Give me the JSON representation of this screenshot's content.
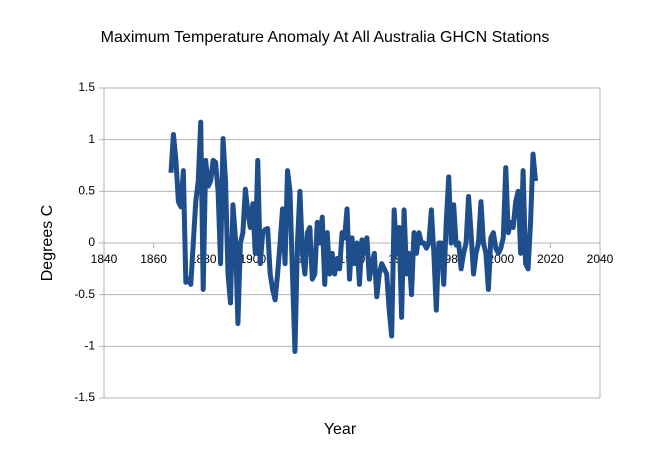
{
  "chart_data": {
    "type": "line",
    "title": "Maximum Temperature Anomaly At All Australia GHCN Stations",
    "xlabel": "Year",
    "ylabel": "Degrees C",
    "color": "#1f4e8c",
    "grid": true,
    "xlim": [
      1840,
      2040
    ],
    "xticks": [
      1840,
      1860,
      1880,
      1900,
      1920,
      1940,
      1960,
      1980,
      2000,
      2020,
      2040
    ],
    "ylim": [
      -1.5,
      1.5
    ],
    "yticks": [
      1.5,
      1,
      0.5,
      0,
      -0.5,
      -1,
      -1.5
    ],
    "x": [
      1867,
      1868,
      1869,
      1870,
      1871,
      1872,
      1873,
      1874,
      1875,
      1876,
      1877,
      1878,
      1879,
      1880,
      1881,
      1882,
      1883,
      1884,
      1885,
      1886,
      1887,
      1888,
      1889,
      1890,
      1891,
      1892,
      1893,
      1894,
      1895,
      1896,
      1897,
      1898,
      1899,
      1900,
      1901,
      1902,
      1903,
      1904,
      1905,
      1906,
      1907,
      1908,
      1909,
      1910,
      1911,
      1912,
      1913,
      1914,
      1915,
      1916,
      1917,
      1918,
      1919,
      1920,
      1921,
      1922,
      1923,
      1924,
      1925,
      1926,
      1927,
      1928,
      1929,
      1930,
      1931,
      1932,
      1933,
      1934,
      1935,
      1936,
      1937,
      1938,
      1939,
      1940,
      1941,
      1942,
      1943,
      1944,
      1945,
      1946,
      1947,
      1948,
      1949,
      1950,
      1951,
      1952,
      1953,
      1954,
      1955,
      1956,
      1957,
      1958,
      1959,
      1960,
      1961,
      1962,
      1963,
      1964,
      1965,
      1966,
      1967,
      1968,
      1969,
      1970,
      1971,
      1972,
      1973,
      1974,
      1975,
      1976,
      1977,
      1978,
      1979,
      1980,
      1981,
      1982,
      1983,
      1984,
      1985,
      1986,
      1987,
      1988,
      1989,
      1990,
      1991,
      1992,
      1993,
      1994,
      1995,
      1996,
      1997,
      1998,
      1999,
      2000,
      2001,
      2002,
      2003,
      2004,
      2005,
      2006,
      2007,
      2008,
      2009,
      2010,
      2011,
      2012,
      2013,
      2014
    ],
    "values": [
      0.68,
      1.05,
      0.8,
      0.4,
      0.35,
      0.7,
      -0.38,
      -0.35,
      -0.4,
      0,
      0.4,
      0.6,
      1.17,
      -0.45,
      0.8,
      0.55,
      0.6,
      0.8,
      0.78,
      0.5,
      -0.2,
      1.01,
      0.6,
      -0.3,
      -0.58,
      0.37,
      0.05,
      -0.78,
      0,
      0.1,
      0.52,
      0.3,
      0.15,
      0.38,
      -0.1,
      0.8,
      -0.2,
      0.1,
      0.13,
      0.14,
      -0.3,
      -0.45,
      -0.55,
      -0.3,
      0,
      0.33,
      -0.2,
      0.7,
      0.5,
      -0.3,
      -1.05,
      0,
      0.5,
      -0.1,
      -0.3,
      0.1,
      0.15,
      -0.35,
      -0.3,
      0.2,
      0,
      0.25,
      -0.4,
      0.1,
      -0.3,
      -0.1,
      -0.3,
      -0.15,
      -0.25,
      0.1,
      0.05,
      0.33,
      -0.35,
      0.05,
      -0.2,
      0,
      -0.4,
      0.03,
      -0.1,
      0.05,
      -0.35,
      -0.2,
      -0.1,
      -0.52,
      -0.3,
      -0.2,
      -0.25,
      -0.3,
      -0.65,
      -0.9,
      0.32,
      -0.1,
      0.15,
      -0.72,
      0.32,
      -0.3,
      -0.1,
      -0.5,
      0.1,
      -0.1,
      0.1,
      0,
      0,
      -0.05,
      0,
      0.32,
      -0.1,
      -0.65,
      0,
      0,
      -0.4,
      0.2,
      0.64,
      0,
      0.37,
      -0.02,
      0,
      -0.25,
      -0.1,
      0,
      0.45,
      0.1,
      -0.3,
      -0.1,
      0,
      0.4,
      0,
      -0.1,
      -0.45,
      0.05,
      0.1,
      -0.05,
      -0.1,
      -0.05,
      0.05,
      0.73,
      0.1,
      0.2,
      0.15,
      0.4,
      0.5,
      -0.1,
      0.7,
      -0.2,
      -0.25,
      0.2,
      0.86,
      0.6
    ]
  }
}
